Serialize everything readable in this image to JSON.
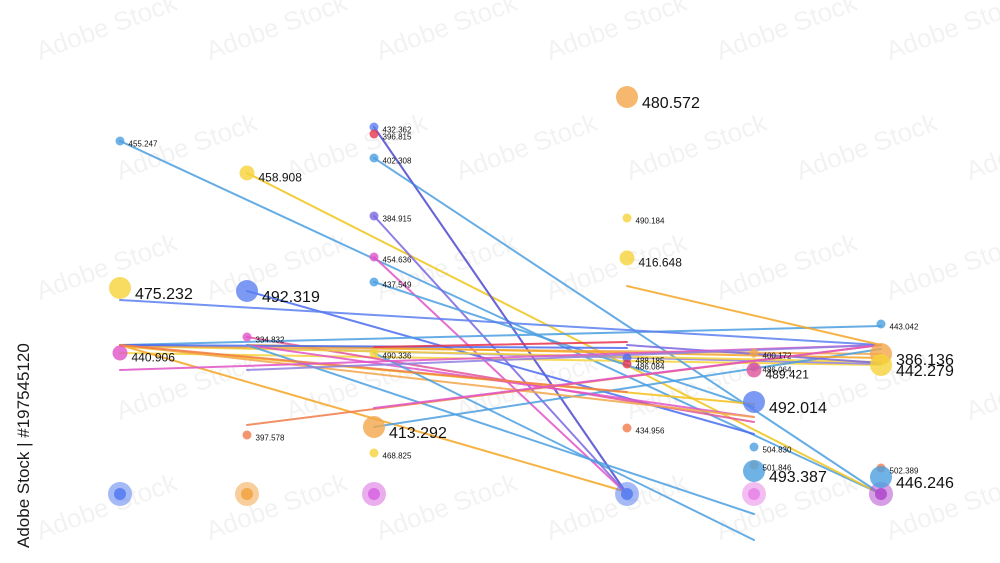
{
  "credit": "Adobe Stock | #197545120",
  "watermark": "Adobe Stock",
  "chart_data": {
    "type": "scatter",
    "title": "",
    "xlabel": "",
    "ylabel": "",
    "columns": [
      1,
      2,
      3,
      4,
      5,
      6
    ],
    "ylim": [
      0,
      560
    ],
    "grid": false,
    "legend": "none",
    "segments": [
      {
        "from": [
          1,
          422
        ],
        "to": [
          6,
          69
        ],
        "color": "#4b9fe0"
      },
      {
        "from": [
          2,
          390
        ],
        "to": [
          6,
          69
        ],
        "color": "#f0c419"
      },
      {
        "from": [
          1,
          210
        ],
        "to": [
          6,
          198
        ],
        "color": "#f5d33a"
      },
      {
        "from": [
          1,
          218
        ],
        "to": [
          4,
          71
        ],
        "color": "#f5a623"
      },
      {
        "from": [
          1,
          218
        ],
        "to": [
          6,
          199
        ],
        "color": "#8f7fe0"
      },
      {
        "from": [
          3,
          436
        ],
        "to": [
          4,
          69
        ],
        "color": "#e8344e"
      },
      {
        "from": [
          3,
          405
        ],
        "to": [
          6,
          69
        ],
        "color": "#4b9fe0"
      },
      {
        "from": [
          3,
          436
        ],
        "to": [
          4,
          69
        ],
        "color": "#4a6cf0"
      },
      {
        "from": [
          3,
          347
        ],
        "to": [
          4,
          69
        ],
        "color": "#7a66e0"
      },
      {
        "from": [
          3,
          306
        ],
        "to": [
          4,
          69
        ],
        "color": "#e054c8"
      },
      {
        "from": [
          3,
          281
        ],
        "to": [
          5,
          156
        ],
        "color": "#4b9fe0"
      },
      {
        "from": [
          2,
          272
        ],
        "to": [
          5,
          129
        ],
        "color": "#4a6cf0"
      },
      {
        "from": [
          2,
          226
        ],
        "to": [
          5,
          141
        ],
        "color": "#e0559a"
      },
      {
        "from": [
          1,
          217
        ],
        "to": [
          5,
          159
        ],
        "color": "#f5c01a"
      },
      {
        "from": [
          1,
          217
        ],
        "to": [
          6,
          201
        ],
        "color": "#f5d33a"
      },
      {
        "from": [
          1,
          217
        ],
        "to": [
          6,
          209
        ],
        "color": "#f2a64a"
      },
      {
        "from": [
          3,
          136
        ],
        "to": [
          6,
          214
        ],
        "color": "#4b9fe0"
      },
      {
        "from": [
          1,
          218
        ],
        "to": [
          6,
          237
        ],
        "color": "#4b9fe0"
      },
      {
        "from": [
          2,
          218
        ],
        "to": [
          6,
          205
        ],
        "color": "#f5a623"
      },
      {
        "from": [
          1,
          218
        ],
        "to": [
          4,
          215
        ],
        "color": "#4a6cf0"
      },
      {
        "from": [
          3,
          216
        ],
        "to": [
          4,
          221
        ],
        "color": "#e8344e"
      },
      {
        "from": [
          2,
          218
        ],
        "to": [
          5,
          146
        ],
        "color": "#e054c8"
      },
      {
        "from": [
          1,
          218
        ],
        "to": [
          5,
          146
        ],
        "color": "#f2a64a"
      },
      {
        "from": [
          2,
          218
        ],
        "to": [
          5,
          49
        ],
        "color": "#4b9fe0"
      },
      {
        "from": [
          3,
          210
        ],
        "to": [
          5,
          23
        ],
        "color": "#4b9fe0"
      },
      {
        "from": [
          1,
          218
        ],
        "to": [
          4,
          171
        ],
        "color": "#f07b4a"
      },
      {
        "from": [
          4,
          218
        ],
        "to": [
          6,
          200
        ],
        "color": "#7a66e0"
      },
      {
        "from": [
          1,
          193
        ],
        "to": [
          6,
          218
        ],
        "color": "#e054c8"
      },
      {
        "from": [
          2,
          193
        ],
        "to": [
          6,
          218
        ],
        "color": "#8f7fe0"
      },
      {
        "from": [
          2,
          138
        ],
        "to": [
          6,
          218
        ],
        "color": "#f07b4a"
      },
      {
        "from": [
          1,
          263
        ],
        "to": [
          6,
          218
        ],
        "color": "#5b7ff0"
      },
      {
        "from": [
          3,
          155
        ],
        "to": [
          6,
          218
        ],
        "color": "#e054c8"
      },
      {
        "from": [
          4,
          277
        ],
        "to": [
          6,
          218
        ],
        "color": "#f5a623"
      }
    ],
    "points": [
      {
        "col": 1,
        "y": 422,
        "label": "455.247",
        "size": "small",
        "color": "#4b9fe0"
      },
      {
        "col": 2,
        "y": 390,
        "label": "458.908",
        "size": "medium",
        "color": "#f5d33a"
      },
      {
        "col": 1,
        "y": 275,
        "label": "475.232",
        "size": "large",
        "color": "#f5d33a"
      },
      {
        "col": 1,
        "y": 210,
        "label": "440.906",
        "size": "medium",
        "color": "#e054c8"
      },
      {
        "col": 2,
        "y": 272,
        "label": "492.319",
        "size": "large",
        "color": "#5b7ff0"
      },
      {
        "col": 2,
        "y": 226,
        "label": "334.832",
        "size": "small",
        "color": "#e054c8"
      },
      {
        "col": 2,
        "y": 128,
        "label": "397.578",
        "size": "small",
        "color": "#f07b4a"
      },
      {
        "col": 3,
        "y": 436,
        "label": "432.362",
        "size": "small",
        "color": "#5b7ff0"
      },
      {
        "col": 3,
        "y": 429,
        "label": "396.815",
        "size": "small",
        "color": "#e8344e"
      },
      {
        "col": 3,
        "y": 405,
        "label": "402.308",
        "size": "small",
        "color": "#4b9fe0"
      },
      {
        "col": 3,
        "y": 347,
        "label": "384.915",
        "size": "small",
        "color": "#7a66e0"
      },
      {
        "col": 3,
        "y": 306,
        "label": "454.636",
        "size": "small",
        "color": "#e054c8"
      },
      {
        "col": 3,
        "y": 281,
        "label": "437.549",
        "size": "small",
        "color": "#4b9fe0"
      },
      {
        "col": 3,
        "y": 210,
        "label": "490.336",
        "size": "small",
        "color": "#f5d33a"
      },
      {
        "col": 3,
        "y": 136,
        "label": "413.292",
        "size": "large",
        "color": "#f2a64a"
      },
      {
        "col": 3,
        "y": 110,
        "label": "468.825",
        "size": "small",
        "color": "#f5d33a"
      },
      {
        "col": 4,
        "y": 466,
        "label": "480.572",
        "size": "large",
        "color": "#f2a64a"
      },
      {
        "col": 4,
        "y": 345,
        "label": "490.184",
        "size": "small",
        "color": "#f5d33a"
      },
      {
        "col": 4,
        "y": 305,
        "label": "416.648",
        "size": "medium",
        "color": "#f5d33a"
      },
      {
        "col": 4,
        "y": 205,
        "label": "488.185",
        "size": "small",
        "color": "#4a6cf0"
      },
      {
        "col": 4,
        "y": 199,
        "label": "486.084",
        "size": "small",
        "color": "#e8344e"
      },
      {
        "col": 4,
        "y": 135,
        "label": "434.956",
        "size": "small",
        "color": "#f07b4a"
      },
      {
        "col": 5,
        "y": 210,
        "label": "400.172",
        "size": "small",
        "color": "#f2a64a"
      },
      {
        "col": 5,
        "y": 196,
        "label": "486.064",
        "size": "small",
        "color": "#8f7fe0"
      },
      {
        "col": 5,
        "y": 193,
        "label": "489.421",
        "size": "medium",
        "color": "#e0559a"
      },
      {
        "col": 5,
        "y": 161,
        "label": "492.014",
        "size": "large",
        "color": "#5b7ff0"
      },
      {
        "col": 5,
        "y": 116,
        "label": "504.830",
        "size": "small",
        "color": "#4b9fe0"
      },
      {
        "col": 5,
        "y": 98,
        "label": "501.846",
        "size": "small",
        "color": "#f2a64a"
      },
      {
        "col": 5,
        "y": 92,
        "label": "493.387",
        "size": "large",
        "color": "#4b9fe0"
      },
      {
        "col": 6,
        "y": 239,
        "label": "443.042",
        "size": "small",
        "color": "#4b9fe0"
      },
      {
        "col": 6,
        "y": 209,
        "label": "386.136",
        "size": "large",
        "color": "#f2a64a"
      },
      {
        "col": 6,
        "y": 198,
        "label": "442.279",
        "size": "large",
        "color": "#f5d33a"
      },
      {
        "col": 6,
        "y": 95,
        "label": "502.389",
        "size": "small",
        "color": "#f07b4a"
      },
      {
        "col": 6,
        "y": 86,
        "label": "446.246",
        "size": "large",
        "color": "#4b9fe0"
      }
    ],
    "bottom_nodes": [
      {
        "col": 1,
        "y": 69,
        "color": "#5b7ff0"
      },
      {
        "col": 2,
        "y": 69,
        "color": "#f2a64a"
      },
      {
        "col": 3,
        "y": 69,
        "color": "#d86be0"
      },
      {
        "col": 4,
        "y": 69,
        "color": "#5b7ff0"
      },
      {
        "col": 5,
        "y": 69,
        "color": "#e888e8"
      },
      {
        "col": 6,
        "y": 69,
        "color": "#b44fd0"
      }
    ]
  }
}
